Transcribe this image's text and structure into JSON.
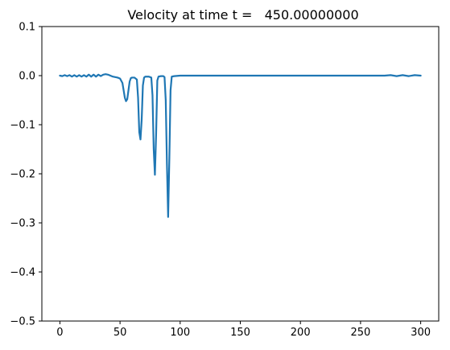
{
  "chart_data": {
    "type": "line",
    "title": "Velocity at time t =   450.00000000",
    "xlabel": "",
    "ylabel": "",
    "xlim": [
      -15,
      315
    ],
    "ylim": [
      -0.5,
      0.1
    ],
    "grid": false,
    "xticks": [
      0,
      50,
      100,
      150,
      200,
      250,
      300
    ],
    "yticks": [
      0.1,
      0.0,
      -0.1,
      -0.2,
      -0.3,
      -0.4,
      -0.5
    ],
    "xtick_labels": [
      "0",
      "50",
      "100",
      "150",
      "200",
      "250",
      "300"
    ],
    "ytick_labels": [
      "0.1",
      "0.0",
      "−0.1",
      "−0.2",
      "−0.3",
      "−0.4",
      "−0.5"
    ],
    "series": [
      {
        "color": "#1f77b4",
        "x": [
          0,
          2,
          4,
          6,
          8,
          10,
          12,
          14,
          16,
          18,
          20,
          22,
          24,
          26,
          28,
          30,
          32,
          34,
          36,
          38,
          40,
          42,
          44,
          46,
          48,
          50,
          52,
          53,
          54,
          55,
          56,
          57,
          58,
          59,
          60,
          62,
          64,
          65,
          66,
          67,
          68,
          69,
          70,
          71,
          72,
          74,
          76,
          77,
          78,
          79,
          80,
          81,
          82,
          84,
          86,
          87,
          88,
          89,
          90,
          91,
          92,
          93,
          95,
          100,
          150,
          200,
          250,
          270,
          275,
          280,
          285,
          290,
          295,
          300
        ],
        "y": [
          0.0,
          -0.001,
          0.001,
          -0.001,
          0.001,
          -0.002,
          0.001,
          -0.002,
          0.001,
          -0.002,
          0.001,
          -0.002,
          0.002,
          -0.002,
          0.002,
          -0.002,
          0.002,
          -0.001,
          0.002,
          0.003,
          0.002,
          0.0,
          -0.002,
          -0.003,
          -0.004,
          -0.006,
          -0.015,
          -0.03,
          -0.045,
          -0.052,
          -0.048,
          -0.03,
          -0.012,
          -0.005,
          -0.004,
          -0.004,
          -0.008,
          -0.045,
          -0.115,
          -0.13,
          -0.09,
          -0.02,
          -0.004,
          -0.002,
          -0.002,
          -0.002,
          -0.004,
          -0.04,
          -0.15,
          -0.202,
          -0.12,
          -0.01,
          -0.002,
          -0.001,
          -0.001,
          -0.003,
          -0.05,
          -0.18,
          -0.288,
          -0.17,
          -0.03,
          -0.002,
          -0.001,
          0.0,
          0.0,
          0.0,
          0.0,
          0.0,
          0.001,
          -0.001,
          0.001,
          -0.001,
          0.001,
          0.0
        ]
      }
    ]
  }
}
